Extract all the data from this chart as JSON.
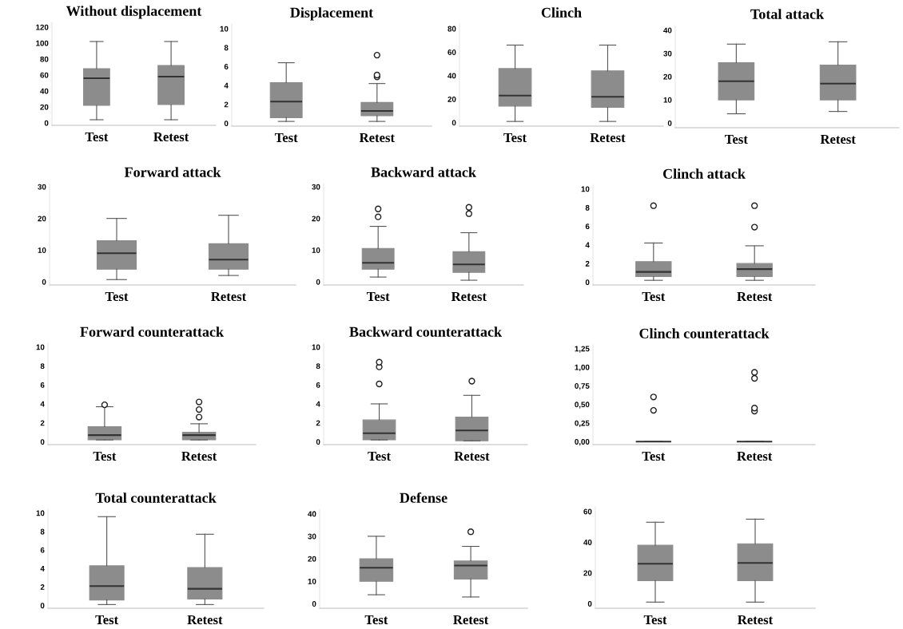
{
  "chart_data": [
    {
      "type": "box",
      "title": "Without displacement",
      "categories": [
        "Test",
        "Retest"
      ],
      "ylim": [
        -3,
        126
      ],
      "yticks": [
        0,
        20,
        40,
        60,
        80,
        100,
        120
      ],
      "color": "#8c8c8c",
      "boxes": [
        {
          "low": 4,
          "q1": 22,
          "median": 56,
          "q3": 68,
          "high": 102
        },
        {
          "low": 4,
          "q1": 23,
          "median": 58,
          "q3": 72,
          "high": 102
        }
      ]
    },
    {
      "type": "box",
      "title": "Displacement",
      "categories": [
        "Test",
        "Retest"
      ],
      "ylim": [
        -0.3,
        10.5
      ],
      "yticks": [
        0,
        2,
        4,
        6,
        8,
        10
      ],
      "color": "#8c8c8c",
      "boxes": [
        {
          "low": 0.2,
          "q1": 0.6,
          "median": 2.3,
          "q3": 4.3,
          "high": 6.4
        },
        {
          "low": 0.2,
          "q1": 0.8,
          "median": 1.3,
          "q3": 2.2,
          "high": 4.2,
          "outliers": [
            4.9,
            5.1,
            7.2
          ]
        }
      ]
    },
    {
      "type": "box",
      "title": "Clinch",
      "categories": [
        "Test",
        "Retest"
      ],
      "ylim": [
        -3,
        84
      ],
      "yticks": [
        0,
        20,
        40,
        60,
        80
      ],
      "color": "#8c8c8c",
      "boxes": [
        {
          "low": 1,
          "q1": 14,
          "median": 23,
          "q3": 46,
          "high": 66
        },
        {
          "low": 1,
          "q1": 13,
          "median": 22,
          "q3": 44,
          "high": 66
        }
      ]
    },
    {
      "type": "box",
      "title": "Total attack",
      "categories": [
        "Test",
        "Retest"
      ],
      "ylim": [
        -2,
        42
      ],
      "yticks": [
        0,
        10,
        20,
        30,
        40
      ],
      "color": "#8c8c8c",
      "boxes": [
        {
          "low": 4,
          "q1": 10,
          "median": 18,
          "q3": 26,
          "high": 34
        },
        {
          "low": 5,
          "q1": 10,
          "median": 17,
          "q3": 25,
          "high": 35
        }
      ]
    },
    {
      "type": "box",
      "title": "Forward attack",
      "categories": [
        "Test",
        "Retest"
      ],
      "ylim": [
        -1,
        31
      ],
      "yticks": [
        0,
        10,
        20,
        30
      ],
      "color": "#8c8c8c",
      "boxes": [
        {
          "low": 0.7,
          "q1": 4,
          "median": 9,
          "q3": 13,
          "high": 20
        },
        {
          "low": 2,
          "q1": 4,
          "median": 7,
          "q3": 12,
          "high": 21
        }
      ]
    },
    {
      "type": "box",
      "title": "Backward attack",
      "categories": [
        "Test",
        "Retest"
      ],
      "ylim": [
        -1,
        31
      ],
      "yticks": [
        0,
        10,
        20,
        30
      ],
      "color": "#8c8c8c",
      "boxes": [
        {
          "low": 1.5,
          "q1": 4,
          "median": 6,
          "q3": 10.5,
          "high": 17.5,
          "outliers": [
            20.5,
            23
          ]
        },
        {
          "low": 0.5,
          "q1": 3,
          "median": 5.5,
          "q3": 9.5,
          "high": 15.5,
          "outliers": [
            21.5,
            23.5
          ]
        }
      ]
    },
    {
      "type": "box",
      "title": "Clinch attack",
      "categories": [
        "Test",
        "Retest"
      ],
      "ylim": [
        -0.3,
        10.4
      ],
      "yticks": [
        0,
        2,
        4,
        6,
        8,
        10
      ],
      "color": "#8c8c8c",
      "boxes": [
        {
          "low": 0.2,
          "q1": 0.6,
          "median": 1.1,
          "q3": 2.2,
          "high": 4.2,
          "outliers": [
            8.2
          ]
        },
        {
          "low": 0.2,
          "q1": 0.6,
          "median": 1.4,
          "q3": 2.0,
          "high": 3.9,
          "outliers": [
            5.9,
            8.2
          ]
        }
      ]
    },
    {
      "type": "box",
      "title": "Forward counterattack",
      "categories": [
        "Test",
        "Retest"
      ],
      "ylim": [
        -0.3,
        10.4
      ],
      "yticks": [
        0,
        2,
        4,
        6,
        8,
        10
      ],
      "color": "#8c8c8c",
      "boxes": [
        {
          "low": 0.2,
          "q1": 0.2,
          "median": 0.7,
          "q3": 1.6,
          "high": 3.7,
          "outliers": [
            3.9
          ]
        },
        {
          "low": 0.2,
          "q1": 0.2,
          "median": 0.7,
          "q3": 1.0,
          "high": 1.9,
          "outliers": [
            2.6,
            3.4,
            4.2
          ]
        }
      ]
    },
    {
      "type": "box",
      "title": "Backward counterattack",
      "categories": [
        "Test",
        "Retest"
      ],
      "ylim": [
        -0.3,
        10.4
      ],
      "yticks": [
        0,
        2,
        4,
        6,
        8,
        10
      ],
      "color": "#8c8c8c",
      "boxes": [
        {
          "low": 0.2,
          "q1": 0.2,
          "median": 0.9,
          "q3": 2.3,
          "high": 4.0,
          "outliers": [
            6.1,
            7.9,
            8.4
          ]
        },
        {
          "low": 0.1,
          "q1": 0.1,
          "median": 1.2,
          "q3": 2.6,
          "high": 4.9,
          "outliers": [
            6.4
          ]
        }
      ]
    },
    {
      "type": "box",
      "title": "Clinch counterattack",
      "categories": [
        "Test",
        "Retest"
      ],
      "ylim": [
        -0.04,
        1.3
      ],
      "yticks": [
        {
          "value": 0,
          "label": "0,00"
        },
        {
          "value": 0.25,
          "label": "0,25"
        },
        {
          "value": 0.5,
          "label": "0,50"
        },
        {
          "value": 0.75,
          "label": "0,75"
        },
        {
          "value": 1,
          "label": "1,00"
        },
        {
          "value": 1.25,
          "label": "1,25"
        }
      ],
      "color": "#8c8c8c",
      "boxes": [
        {
          "low": 0,
          "q1": 0,
          "median": 0,
          "q3": 0,
          "high": 0,
          "outliers": [
            0.42,
            0.6
          ]
        },
        {
          "low": 0,
          "q1": 0,
          "median": 0,
          "q3": 0,
          "high": 0,
          "outliers": [
            0.41,
            0.45,
            0.85,
            0.93
          ]
        }
      ]
    },
    {
      "type": "box",
      "title": "Total counterattack",
      "categories": [
        "Test",
        "Retest"
      ],
      "ylim": [
        -0.3,
        10.4
      ],
      "yticks": [
        0,
        2,
        4,
        6,
        8,
        10
      ],
      "color": "#8c8c8c",
      "boxes": [
        {
          "low": 0.1,
          "q1": 0.6,
          "median": 2.1,
          "q3": 4.3,
          "high": 9.6
        },
        {
          "low": 0.1,
          "q1": 0.7,
          "median": 1.8,
          "q3": 4.1,
          "high": 7.7
        }
      ]
    },
    {
      "type": "box",
      "title": "Defense",
      "categories": [
        "Test",
        "Retest"
      ],
      "ylim": [
        -2,
        42
      ],
      "yticks": [
        0,
        10,
        20,
        30,
        40
      ],
      "color": "#8c8c8c",
      "boxes": [
        {
          "low": 4,
          "q1": 10,
          "median": 16,
          "q3": 20,
          "high": 30
        },
        {
          "low": 3,
          "q1": 11,
          "median": 17,
          "q3": 19,
          "high": 25.5,
          "outliers": [
            32
          ]
        }
      ]
    },
    {
      "type": "box",
      "categories": [
        "Test",
        "Retest"
      ],
      "ylim": [
        -3,
        63
      ],
      "yticks": [
        0,
        20,
        40,
        60
      ],
      "color": "#8c8c8c",
      "boxes": [
        {
          "low": 1,
          "q1": 15,
          "median": 26,
          "q3": 38,
          "high": 53
        },
        {
          "low": 1,
          "q1": 15,
          "median": 26.5,
          "q3": 39,
          "high": 55
        }
      ]
    }
  ]
}
